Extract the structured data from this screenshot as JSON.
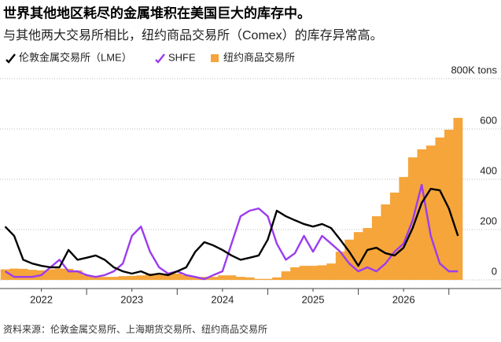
{
  "chart_data": {
    "type": "line",
    "title": "世界其他地区耗尽的金属堆积在美国巨大的库存中。",
    "subtitle": "与其他两大交易所相比，纽约商品交易所（Comex）的库存异常高。",
    "source": "资料来源：伦敦金属交易所、上海期货交易所、纽约商品交易所",
    "x": [
      2022.1,
      2022.2,
      2022.3,
      2022.4,
      2022.5,
      2022.6,
      2022.7,
      2022.8,
      2022.9,
      2023.0,
      2023.1,
      2023.2,
      2023.3,
      2023.4,
      2023.5,
      2023.6,
      2023.7,
      2023.8,
      2023.9,
      2024.0,
      2024.1,
      2024.2,
      2024.3,
      2024.4,
      2024.5,
      2024.6,
      2024.7,
      2024.8,
      2024.9,
      2025.0,
      2025.1,
      2025.2,
      2025.3,
      2025.4,
      2025.5,
      2025.6,
      2025.7,
      2025.8,
      2025.9,
      2026.0,
      2026.1,
      2026.2,
      2026.3,
      2026.4,
      2026.5,
      2026.6,
      2026.7,
      2026.8,
      2026.9,
      2027.0,
      2027.1
    ],
    "series": [
      {
        "name": "纽约商品交易所",
        "type": "bar",
        "color": "#f5a53a",
        "values": [
          42,
          45,
          44,
          40,
          38,
          42,
          45,
          44,
          38,
          20,
          14,
          12,
          12,
          15,
          16,
          18,
          25,
          26,
          25,
          25,
          19,
          12,
          12,
          12,
          18,
          18,
          12,
          10,
          4,
          4,
          10,
          34,
          50,
          56,
          56,
          58,
          65,
          112,
          160,
          190,
          206,
          253,
          300,
          347,
          409,
          487,
          519,
          534,
          566,
          597,
          644
        ]
      },
      {
        "name": "SHFE",
        "type": "line",
        "color": "#9b3cf0",
        "values": [
          34,
          12,
          12,
          12,
          19,
          50,
          80,
          34,
          34,
          19,
          12,
          19,
          34,
          65,
          175,
          212,
          112,
          50,
          25,
          34,
          19,
          12,
          3,
          19,
          34,
          144,
          253,
          275,
          284,
          253,
          144,
          80,
          106,
          175,
          112,
          175,
          144,
          112,
          65,
          34,
          50,
          34,
          65,
          112,
          144,
          237,
          378,
          175,
          65,
          34,
          34
        ]
      },
      {
        "name": "伦敦金属交易所（LME）",
        "type": "line",
        "color": "#000000",
        "values": [
          212,
          175,
          80,
          65,
          56,
          50,
          50,
          119,
          80,
          88,
          97,
          80,
          50,
          34,
          25,
          34,
          19,
          25,
          19,
          34,
          50,
          112,
          150,
          137,
          119,
          97,
          80,
          88,
          97,
          160,
          275,
          253,
          237,
          222,
          212,
          222,
          206,
          160,
          112,
          56,
          119,
          128,
          106,
          97,
          128,
          206,
          306,
          362,
          356,
          284,
          175
        ]
      }
    ],
    "xlim": [
      2022.1,
      2027.15
    ],
    "xticks": [
      {
        "value": 2022.5,
        "label": "2022"
      },
      {
        "value": 2023.5,
        "label": "2023"
      },
      {
        "value": 2024.5,
        "label": "2024"
      },
      {
        "value": 2025.5,
        "label": "2025"
      },
      {
        "value": 2026.5,
        "label": "2026"
      }
    ],
    "ylim": [
      0,
      800
    ],
    "yticks": [
      0,
      200,
      400,
      600,
      {
        "value": 800,
        "label": "800K tons"
      }
    ],
    "grid": true
  }
}
